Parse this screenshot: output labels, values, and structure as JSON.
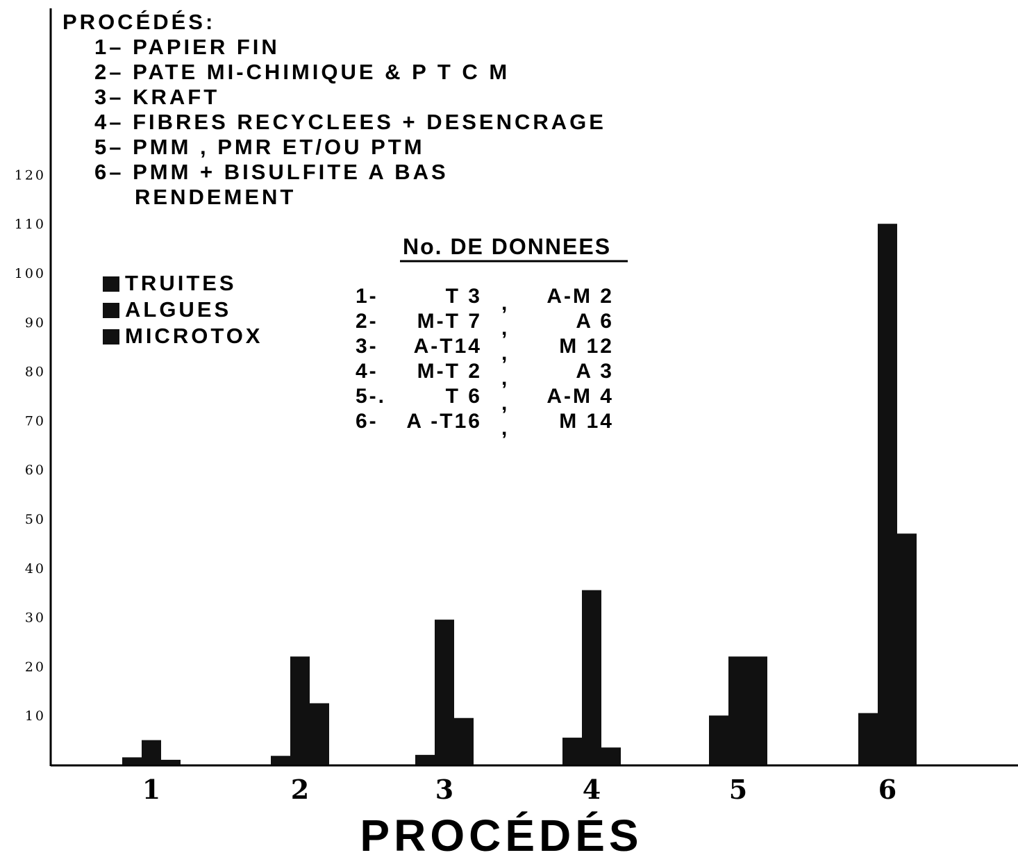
{
  "chart_data": {
    "type": "bar",
    "xlabel": "PROCÉDÉS",
    "ylabel": "",
    "ylim": [
      0,
      120
    ],
    "yticks": [
      10,
      20,
      30,
      40,
      50,
      60,
      70,
      80,
      90,
      100,
      110,
      120
    ],
    "categories": [
      "1",
      "2",
      "3",
      "4",
      "5",
      "6"
    ],
    "series": [
      {
        "name": "TRUITES",
        "values": [
          1.5,
          1.8,
          2,
          5.5,
          10,
          10.5
        ],
        "color": "#111111"
      },
      {
        "name": "ALGUES",
        "values": [
          5,
          22,
          29.5,
          35.5,
          22,
          110
        ],
        "color": "#111111"
      },
      {
        "name": "MICROTOX",
        "values": [
          1,
          12.5,
          9.5,
          3.5,
          22,
          47
        ],
        "color": "#111111"
      }
    ],
    "legend_position": "upper-left",
    "procedes_title": "PROCÉDÉS:",
    "procedes": [
      "1– PAPIER FIN",
      "2– PATE  MI-CHIMIQUE & P T C M",
      "3– KRAFT",
      "4– FIBRES  RECYCLEES  + DESENCRAGE",
      "5– PMM , PMR  ET/OU  PTM",
      "6– PMM + BISULFITE  A  BAS",
      "RENDEMENT"
    ],
    "donnees_title": "No. DE  DONNEES",
    "donnees": [
      {
        "num": "1-",
        "left": "T 3",
        "sep": ",",
        "right": "A-M  2"
      },
      {
        "num": "2-",
        "left": "M-T 7",
        "sep": ",",
        "right": "A  6"
      },
      {
        "num": "3-",
        "left": "A-T14",
        "sep": ",",
        "right": "M  12"
      },
      {
        "num": "4-",
        "left": "M-T 2",
        "sep": ",",
        "right": "A  3"
      },
      {
        "num": "5-.",
        "left": "T 6",
        "sep": ",",
        "right": "A-M  4"
      },
      {
        "num": "6-",
        "left": "A -T16",
        "sep": ",",
        "right": "M  14"
      }
    ]
  }
}
